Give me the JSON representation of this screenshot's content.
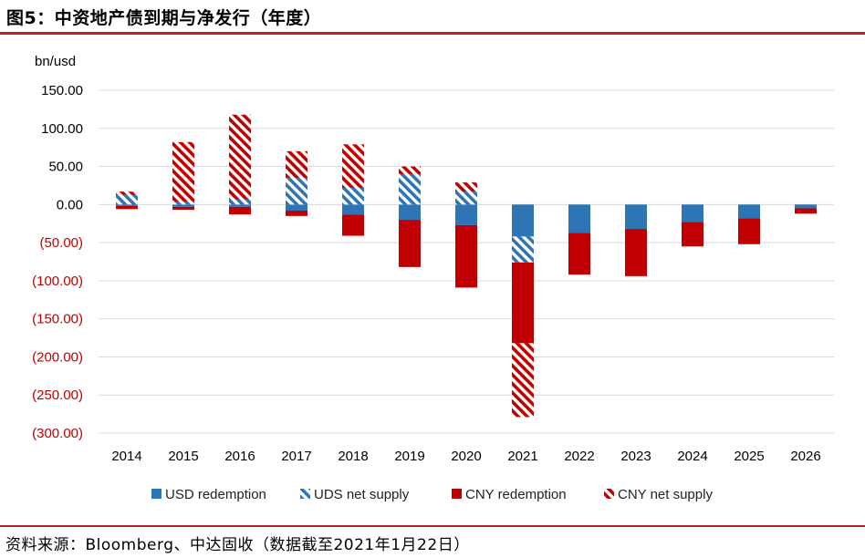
{
  "header": {
    "title": "图5：中资地产债到期与净发行（年度）"
  },
  "footer": {
    "source": "资料来源：Bloomberg、中达固收（数据截至2021年1月22日）"
  },
  "colors": {
    "usd": "#2e75b6",
    "cny": "#c00000",
    "negative_label": "#c00000",
    "rule": "#b2252b",
    "grid": "#d9d9d9"
  },
  "chart_data": {
    "type": "bar",
    "stacked": true,
    "ylabel": "bn/usd",
    "ylim": [
      -300,
      150
    ],
    "yticks": [
      150,
      100,
      50,
      0,
      -50,
      -100,
      -150,
      -200,
      -250,
      -300
    ],
    "ytick_labels": [
      "150.00",
      "100.00",
      "50.00",
      "0.00",
      "(50.00)",
      "(100.00)",
      "(150.00)",
      "(200.00)",
      "(250.00)",
      "(300.00)"
    ],
    "categories": [
      "2014",
      "2015",
      "2016",
      "2017",
      "2018",
      "2019",
      "2020",
      "2021",
      "2022",
      "2023",
      "2024",
      "2025",
      "2026"
    ],
    "grid": true,
    "legend_position": "bottom",
    "series": [
      {
        "name": "USD redemption",
        "pattern": "solid",
        "color": "#2e75b6",
        "values": [
          -2,
          -3,
          -3,
          -8,
          -13,
          -20,
          -27,
          -42,
          -37,
          -32,
          -23,
          -18,
          -5
        ]
      },
      {
        "name": "UDS net supply",
        "pattern": "hatched",
        "color": "#2e75b6",
        "values": [
          13,
          4,
          7,
          35,
          22,
          40,
          17,
          -34,
          0,
          0,
          0,
          0,
          0
        ]
      },
      {
        "name": "CNY redemption",
        "pattern": "solid",
        "color": "#c00000",
        "values": [
          -4,
          -4,
          -10,
          -7,
          -28,
          -62,
          -82,
          -106,
          -55,
          -62,
          -32,
          -34,
          -7
        ]
      },
      {
        "name": "CNY net supply",
        "pattern": "hatched",
        "color": "#c00000",
        "values": [
          4,
          78,
          111,
          35,
          57,
          10,
          12,
          -97,
          0,
          0,
          0,
          0,
          0
        ]
      }
    ]
  }
}
